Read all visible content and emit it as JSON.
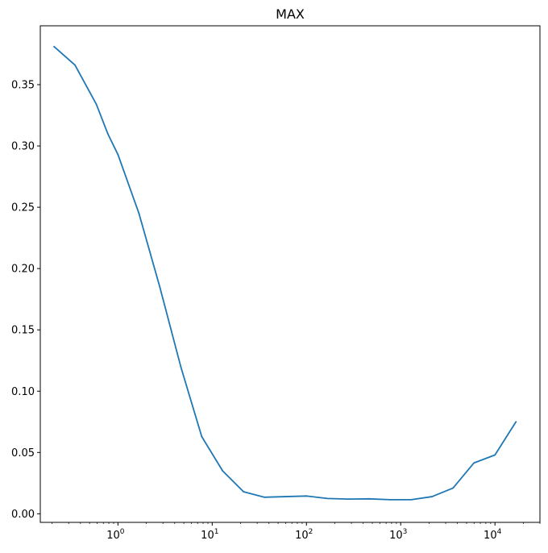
{
  "chart_data": {
    "type": "line",
    "title": "MAX",
    "xlabel": "",
    "ylabel": "",
    "xscale": "log",
    "xlim": [
      0.15,
      30000
    ],
    "ylim": [
      -0.007,
      0.398
    ],
    "x_ticks": [
      {
        "value": 1,
        "base": "10",
        "exp": "0"
      },
      {
        "value": 10,
        "base": "10",
        "exp": "1"
      },
      {
        "value": 100,
        "base": "10",
        "exp": "2"
      },
      {
        "value": 1000,
        "base": "10",
        "exp": "3"
      },
      {
        "value": 10000,
        "base": "10",
        "exp": "4"
      }
    ],
    "y_ticks": [
      {
        "value": 0.0,
        "label": "0.00"
      },
      {
        "value": 0.05,
        "label": "0.05"
      },
      {
        "value": 0.1,
        "label": "0.10"
      },
      {
        "value": 0.15,
        "label": "0.15"
      },
      {
        "value": 0.2,
        "label": "0.20"
      },
      {
        "value": 0.25,
        "label": "0.25"
      },
      {
        "value": 0.3,
        "label": "0.30"
      },
      {
        "value": 0.35,
        "label": "0.35"
      }
    ],
    "grid": false,
    "series": [
      {
        "color": "#1f77b4",
        "x": [
          0.21,
          0.35,
          0.59,
          0.78,
          1.0,
          1.67,
          2.78,
          4.64,
          7.74,
          12.9,
          21.5,
          35.9,
          59.9,
          100,
          167,
          278,
          464,
          774,
          1290,
          2150,
          3590,
          5990,
          10000,
          16700
        ],
        "y": [
          0.381,
          0.366,
          0.334,
          0.31,
          0.293,
          0.245,
          0.185,
          0.12,
          0.063,
          0.035,
          0.018,
          0.0135,
          0.014,
          0.0145,
          0.0125,
          0.012,
          0.0122,
          0.0115,
          0.0115,
          0.014,
          0.021,
          0.0415,
          0.048,
          0.075
        ]
      }
    ]
  }
}
